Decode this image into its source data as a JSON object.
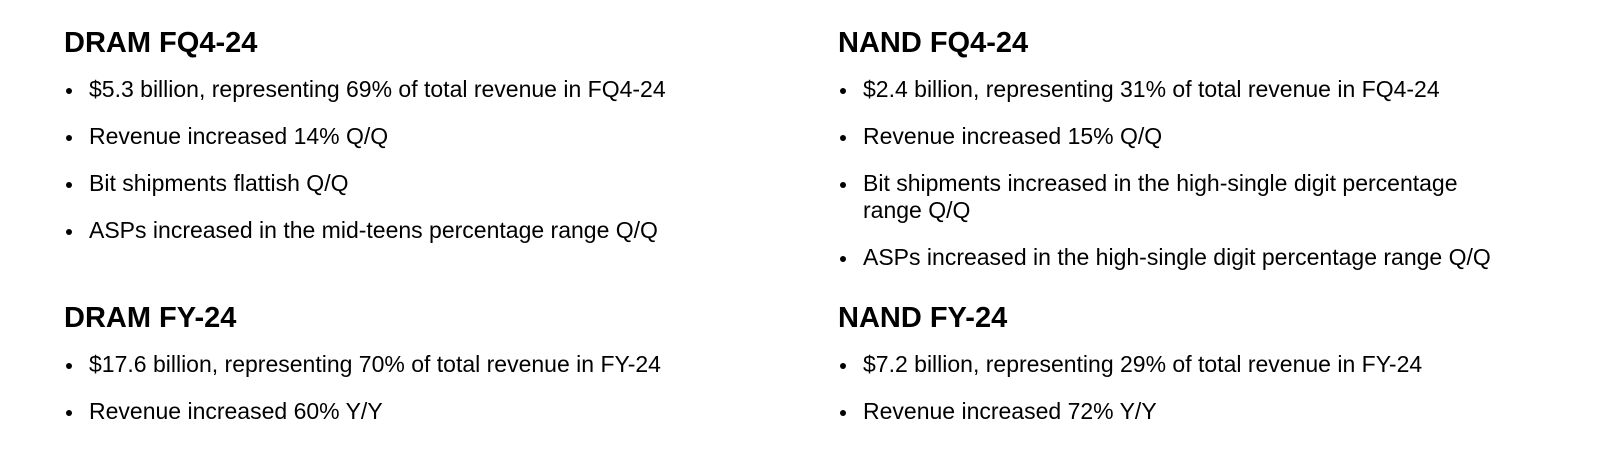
{
  "dram_q": {
    "title": "DRAM FQ4-24",
    "bullets": [
      "$5.3 billion, representing 69% of total revenue in FQ4-24",
      "Revenue increased 14% Q/Q",
      "Bit shipments flattish Q/Q",
      "ASPs increased in the mid-teens percentage range Q/Q"
    ]
  },
  "nand_q": {
    "title": "NAND FQ4-24",
    "bullets": [
      "$2.4 billion, representing 31% of total revenue in FQ4-24",
      "Revenue increased 15% Q/Q",
      "Bit shipments increased in the high-single digit percentage range Q/Q",
      "ASPs increased in the high-single digit percentage range Q/Q"
    ]
  },
  "dram_y": {
    "title": "DRAM FY-24",
    "bullets": [
      "$17.6 billion, representing 70% of total revenue in FY-24",
      "Revenue increased 60% Y/Y"
    ]
  },
  "nand_y": {
    "title": "NAND FY-24",
    "bullets": [
      "$7.2 billion, representing 29% of total revenue in FY-24",
      "Revenue increased 72% Y/Y"
    ]
  }
}
